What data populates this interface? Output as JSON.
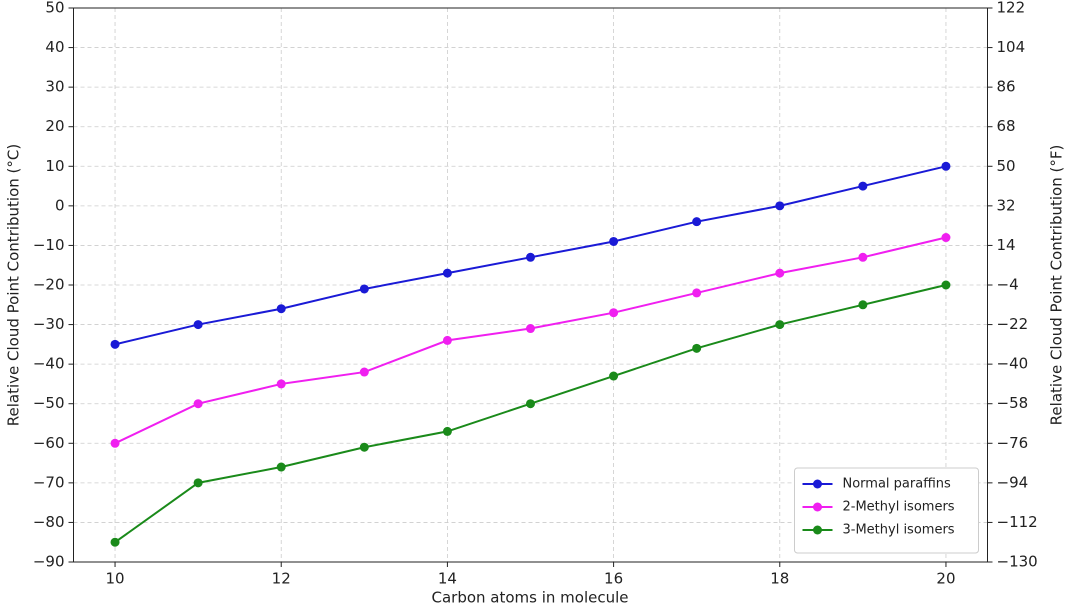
{
  "chart_data": {
    "type": "line",
    "x_label": "Carbon atoms in molecule",
    "y_label": "Relative Cloud Point Contribution (°C)",
    "y2_label": "Relative Cloud Point Contribution (°F)",
    "x": [
      10,
      11,
      12,
      13,
      14,
      15,
      16,
      17,
      18,
      19,
      20
    ],
    "series": [
      {
        "name": "Normal paraffins",
        "color": "#1a1ad6",
        "values": [
          -35,
          -30,
          -26,
          -21,
          -17,
          -13,
          -9,
          -4,
          0,
          5,
          10
        ]
      },
      {
        "name": "2-Methyl isomers",
        "color": "#f01ff0",
        "values": [
          -60,
          -50,
          -45,
          -42,
          -34,
          -31,
          -27,
          -22,
          -17,
          -13,
          -8
        ]
      },
      {
        "name": "3-Methyl isomers",
        "color": "#1a8a1a",
        "values": [
          -85,
          -70,
          -66,
          -61,
          -57,
          -50,
          -43,
          -36,
          -30,
          -25,
          -20
        ]
      }
    ],
    "xlim": [
      9.5,
      20.5
    ],
    "xticks": [
      10,
      12,
      14,
      16,
      18,
      20
    ],
    "ylim": [
      -90,
      50
    ],
    "yticks": [
      {
        "value": -90,
        "label": "−90"
      },
      {
        "value": -80,
        "label": "−80"
      },
      {
        "value": -70,
        "label": "−70"
      },
      {
        "value": -60,
        "label": "−60"
      },
      {
        "value": -50,
        "label": "−50"
      },
      {
        "value": -40,
        "label": "−40"
      },
      {
        "value": -30,
        "label": "−30"
      },
      {
        "value": -20,
        "label": "−20"
      },
      {
        "value": -10,
        "label": "−10"
      },
      0,
      10,
      20,
      30,
      40,
      50
    ],
    "y2lim": [
      -130,
      122
    ],
    "y2ticks": [
      {
        "value": -130,
        "label": "−130"
      },
      {
        "value": -112,
        "label": "−112"
      },
      {
        "value": -94,
        "label": "−94"
      },
      {
        "value": -76,
        "label": "−76"
      },
      {
        "value": -58,
        "label": "−58"
      },
      {
        "value": -40,
        "label": "−40"
      },
      {
        "value": -22,
        "label": "−22"
      },
      {
        "value": -4,
        "label": "−4"
      },
      14,
      32,
      50,
      68,
      86,
      104,
      122
    ],
    "grid": true,
    "legend": "lower right"
  }
}
